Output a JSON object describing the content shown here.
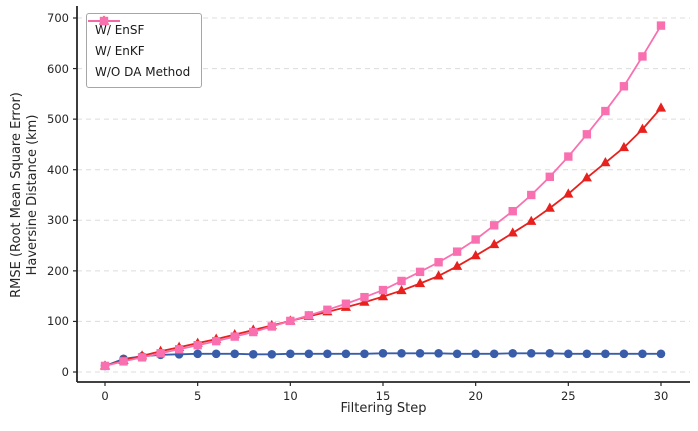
{
  "figure": {
    "xlabel": "Filtering Step",
    "ylabel_line1": "RMSE (Root Mean Square Error)",
    "ylabel_line2": "Haversine Distance (km)",
    "background_color": "#ffffff",
    "spine_color": "#262626",
    "grid_color": "#dcdcdc",
    "tick_label_color": "#262626"
  },
  "chart_data": {
    "type": "line",
    "title": "",
    "xlabel": "Filtering Step",
    "ylabel": "RMSE (Root Mean Square Error) Haversine Distance (km)",
    "x": [
      0,
      1,
      2,
      3,
      4,
      5,
      6,
      7,
      8,
      9,
      10,
      11,
      12,
      13,
      14,
      15,
      16,
      17,
      18,
      19,
      20,
      21,
      22,
      23,
      24,
      25,
      26,
      27,
      28,
      29,
      30
    ],
    "xticks": [
      0,
      5,
      10,
      15,
      20,
      25,
      30
    ],
    "yticks": [
      0,
      100,
      200,
      300,
      400,
      500,
      600,
      700
    ],
    "xlim": [
      -1.5,
      31.5
    ],
    "ylim": [
      -20,
      715
    ],
    "grid": "horizontal-dashed",
    "legend_position": "upper-left",
    "series": [
      {
        "name": "W/ EnSF",
        "marker": "circle",
        "color": "#3a5da9",
        "values": [
          12,
          26,
          31,
          34,
          35,
          36,
          36,
          36,
          35,
          35,
          36,
          36,
          36,
          36,
          36,
          37,
          37,
          37,
          37,
          36,
          36,
          36,
          37,
          37,
          37,
          36,
          36,
          36,
          36,
          36,
          36
        ]
      },
      {
        "name": "W/ EnKF",
        "marker": "triangle-up",
        "color": "#e8201e",
        "values": [
          12,
          23,
          32,
          41,
          49,
          57,
          65,
          74,
          83,
          92,
          101,
          110,
          119,
          128,
          138,
          149,
          161,
          175,
          190,
          209,
          230,
          252,
          275,
          298,
          324,
          352,
          384,
          414,
          444,
          480,
          522
        ]
      },
      {
        "name": "W/O DA Method",
        "marker": "square",
        "color": "#f970b1",
        "values": [
          12,
          21,
          29,
          37,
          45,
          53,
          61,
          70,
          79,
          90,
          101,
          112,
          123,
          135,
          148,
          162,
          180,
          198,
          217,
          238,
          262,
          290,
          318,
          350,
          386,
          426,
          470,
          516,
          565,
          624,
          685
        ]
      }
    ]
  }
}
